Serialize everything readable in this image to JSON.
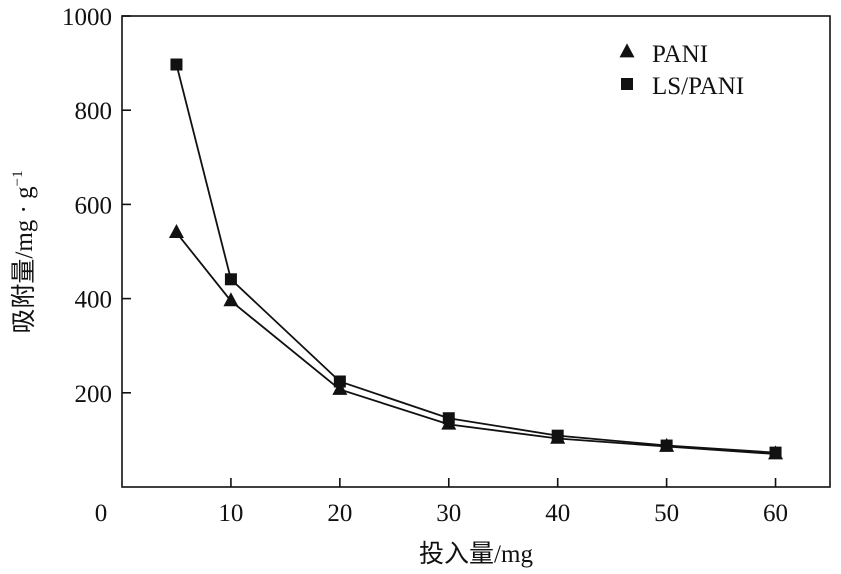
{
  "chart_data": {
    "type": "line",
    "xlabel": "投入量/mg",
    "ylabel_main": "吸附量/mg · g",
    "ylabel_sup": "−1",
    "xlim": [
      0,
      65
    ],
    "ylim": [
      0,
      1000
    ],
    "xticks": [
      0,
      10,
      20,
      30,
      40,
      50,
      60
    ],
    "yticks": [
      200,
      400,
      600,
      800,
      1000
    ],
    "grid": false,
    "legend_position": "top-right",
    "series": [
      {
        "name": "PANI",
        "marker": "triangle",
        "x": [
          5,
          10,
          20,
          30,
          40,
          50,
          60
        ],
        "y": [
          540,
          395,
          207,
          133,
          103,
          86,
          70
        ]
      },
      {
        "name": "LS/PANI",
        "marker": "square",
        "x": [
          5,
          10,
          20,
          30,
          40,
          50,
          60
        ],
        "y": [
          897,
          441,
          224,
          146,
          109,
          88,
          73
        ]
      }
    ],
    "colors": {
      "line": "#111111",
      "marker": "#111111",
      "axis": "#111111"
    }
  }
}
